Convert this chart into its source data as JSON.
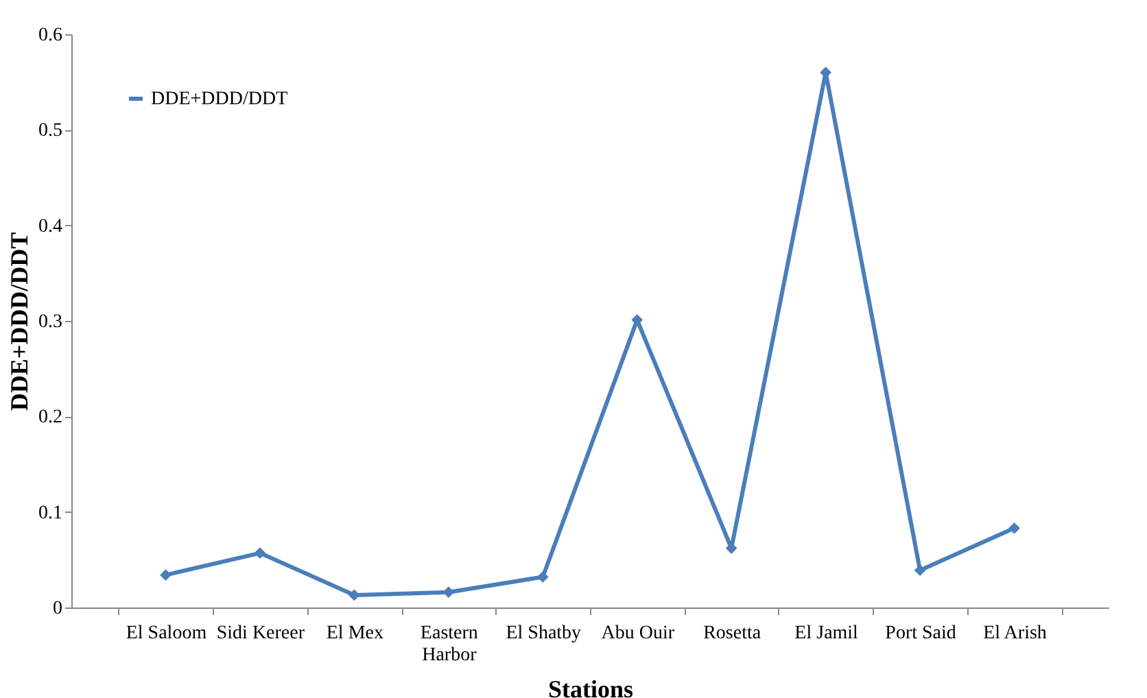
{
  "chart_data": {
    "type": "line",
    "xlabel": "Stations",
    "ylabel": "DDE+DDD/DDT",
    "categories": [
      "El Saloom",
      "Sidi Kereer",
      "El Mex",
      "Eastern Harbor",
      "El Shatby",
      "Abu Ouir",
      "Rosetta",
      "El Jamil",
      "Port Said",
      "El Arish"
    ],
    "series": [
      {
        "name": "DDE+DDD/DDT",
        "color": "#4a7ebb",
        "values": [
          0.034,
          0.057,
          0.013,
          0.016,
          0.032,
          0.301,
          0.062,
          0.56,
          0.039,
          0.083
        ]
      }
    ],
    "ylim": [
      0,
      0.6
    ],
    "yticks": [
      0,
      0.1,
      0.2,
      0.3,
      0.4,
      0.5,
      0.6
    ],
    "grid": false,
    "legend": "top left",
    "marker": "diamond",
    "line_style": "solid"
  }
}
